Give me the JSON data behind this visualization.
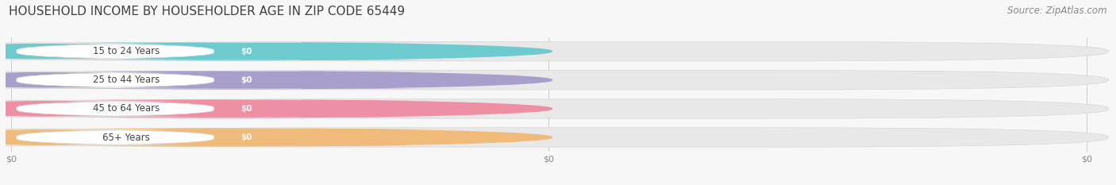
{
  "title": "HOUSEHOLD INCOME BY HOUSEHOLDER AGE IN ZIP CODE 65449",
  "source_text": "Source: ZipAtlas.com",
  "categories": [
    "15 to 24 Years",
    "25 to 44 Years",
    "45 to 64 Years",
    "65+ Years"
  ],
  "values": [
    0,
    0,
    0,
    0
  ],
  "bar_colors": [
    "#6dcbcf",
    "#a89fcc",
    "#ef8fa3",
    "#f0ba7a"
  ],
  "background_color": "#f7f7f7",
  "bar_bg_color": "#ebebeb",
  "title_fontsize": 11,
  "source_fontsize": 8.5,
  "tick_label_color": "#888888"
}
